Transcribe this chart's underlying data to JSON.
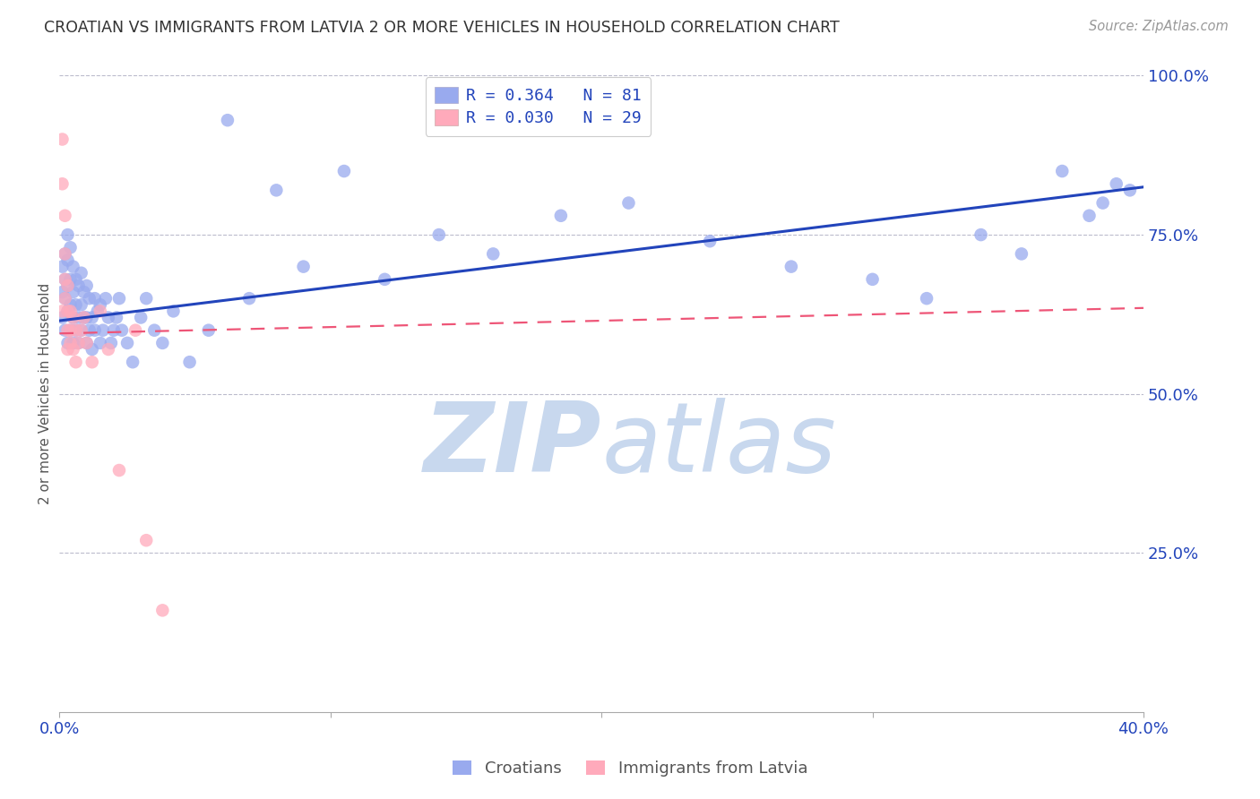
{
  "title": "CROATIAN VS IMMIGRANTS FROM LATVIA 2 OR MORE VEHICLES IN HOUSEHOLD CORRELATION CHART",
  "source": "Source: ZipAtlas.com",
  "ylabel": "2 or more Vehicles in Household",
  "right_yticklabels": [
    "",
    "25.0%",
    "50.0%",
    "75.0%",
    "100.0%"
  ],
  "blue_color": "#99aaee",
  "pink_color": "#ffaabb",
  "blue_line_color": "#2244bb",
  "pink_line_color": "#ee5577",
  "watermark_zip": "ZIP",
  "watermark_atlas": "atlas",
  "watermark_color": "#c8d8ee",
  "background_color": "#ffffff",
  "xlim": [
    0.0,
    0.4
  ],
  "ylim": [
    0.0,
    1.0
  ],
  "blue_line_x0": 0.0,
  "blue_line_y0": 0.615,
  "blue_line_x1": 0.4,
  "blue_line_y1": 0.825,
  "pink_line_x0": 0.0,
  "pink_line_y0": 0.595,
  "pink_line_x1": 0.4,
  "pink_line_y1": 0.635,
  "croatians_x": [
    0.001,
    0.001,
    0.001,
    0.002,
    0.002,
    0.002,
    0.002,
    0.003,
    0.003,
    0.003,
    0.003,
    0.003,
    0.004,
    0.004,
    0.004,
    0.004,
    0.005,
    0.005,
    0.005,
    0.005,
    0.006,
    0.006,
    0.006,
    0.007,
    0.007,
    0.007,
    0.008,
    0.008,
    0.008,
    0.009,
    0.009,
    0.01,
    0.01,
    0.01,
    0.011,
    0.011,
    0.012,
    0.012,
    0.013,
    0.013,
    0.014,
    0.015,
    0.015,
    0.016,
    0.017,
    0.018,
    0.019,
    0.02,
    0.021,
    0.022,
    0.023,
    0.025,
    0.027,
    0.03,
    0.032,
    0.035,
    0.038,
    0.042,
    0.048,
    0.055,
    0.062,
    0.07,
    0.08,
    0.09,
    0.105,
    0.12,
    0.14,
    0.16,
    0.185,
    0.21,
    0.24,
    0.27,
    0.3,
    0.32,
    0.34,
    0.355,
    0.37,
    0.38,
    0.385,
    0.39,
    0.395
  ],
  "croatians_y": [
    0.62,
    0.66,
    0.7,
    0.6,
    0.65,
    0.68,
    0.72,
    0.58,
    0.63,
    0.67,
    0.71,
    0.75,
    0.6,
    0.64,
    0.68,
    0.73,
    0.58,
    0.62,
    0.66,
    0.7,
    0.6,
    0.64,
    0.68,
    0.58,
    0.62,
    0.67,
    0.6,
    0.64,
    0.69,
    0.62,
    0.66,
    0.58,
    0.62,
    0.67,
    0.6,
    0.65,
    0.62,
    0.57,
    0.6,
    0.65,
    0.63,
    0.58,
    0.64,
    0.6,
    0.65,
    0.62,
    0.58,
    0.6,
    0.62,
    0.65,
    0.6,
    0.58,
    0.55,
    0.62,
    0.65,
    0.6,
    0.58,
    0.63,
    0.55,
    0.6,
    0.93,
    0.65,
    0.82,
    0.7,
    0.85,
    0.68,
    0.75,
    0.72,
    0.78,
    0.8,
    0.74,
    0.7,
    0.68,
    0.65,
    0.75,
    0.72,
    0.85,
    0.78,
    0.8,
    0.83,
    0.82
  ],
  "latvians_x": [
    0.001,
    0.001,
    0.001,
    0.002,
    0.002,
    0.002,
    0.002,
    0.003,
    0.003,
    0.003,
    0.003,
    0.004,
    0.004,
    0.004,
    0.005,
    0.005,
    0.006,
    0.006,
    0.007,
    0.008,
    0.009,
    0.01,
    0.012,
    0.015,
    0.018,
    0.022,
    0.028,
    0.032,
    0.038
  ],
  "latvians_y": [
    0.9,
    0.83,
    0.63,
    0.78,
    0.72,
    0.65,
    0.68,
    0.6,
    0.63,
    0.67,
    0.57,
    0.6,
    0.63,
    0.58,
    0.62,
    0.57,
    0.6,
    0.55,
    0.58,
    0.6,
    0.62,
    0.58,
    0.55,
    0.63,
    0.57,
    0.38,
    0.6,
    0.27,
    0.16
  ]
}
